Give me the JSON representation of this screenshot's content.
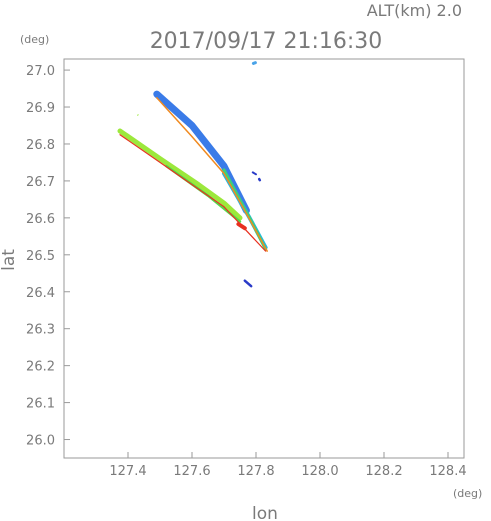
{
  "chart_data": {
    "type": "scatter",
    "header": "ALT(km)  2.0",
    "title": "2017/09/17 21:16:30",
    "xlabel": "lon",
    "ylabel": "lat",
    "xunit": "(deg)",
    "yunit": "(deg)",
    "xlim": [
      127.2,
      128.45
    ],
    "ylim": [
      25.95,
      27.03
    ],
    "xticks": [
      127.4,
      127.6,
      127.8,
      128.0,
      128.2,
      128.4
    ],
    "yticks": [
      26.0,
      26.1,
      26.2,
      26.3,
      26.4,
      26.5,
      26.6,
      26.7,
      26.8,
      26.9,
      27.0
    ],
    "xtick_labels": [
      "127.4",
      "127.6",
      "127.8",
      "128.0",
      "128.2",
      "128.4"
    ],
    "ytick_labels": [
      "26.0",
      "26.1",
      "26.2",
      "26.3",
      "26.4",
      "26.5",
      "26.6",
      "26.7",
      "26.8",
      "26.9",
      "27.0"
    ],
    "grid": false,
    "series": [
      {
        "color": "#3a7be8",
        "width": 7,
        "points": [
          [
            127.49,
            26.935
          ],
          [
            127.6,
            26.85
          ],
          [
            127.7,
            26.74
          ],
          [
            127.77,
            26.62
          ]
        ]
      },
      {
        "color": "#24b8e0",
        "width": 4,
        "points": [
          [
            127.7,
            26.72
          ],
          [
            127.78,
            26.6
          ],
          [
            127.83,
            26.52
          ]
        ]
      },
      {
        "color": "#3fcf7a",
        "width": 3,
        "points": [
          [
            127.7,
            26.73
          ],
          [
            127.78,
            26.6
          ],
          [
            127.83,
            26.515
          ]
        ]
      },
      {
        "color": "#f08a20",
        "width": 1.5,
        "points": [
          [
            127.49,
            26.925
          ],
          [
            127.6,
            26.82
          ],
          [
            127.7,
            26.72
          ],
          [
            127.835,
            26.51
          ]
        ]
      },
      {
        "color": "#9ce83c",
        "width": 5,
        "points": [
          [
            127.375,
            26.835
          ],
          [
            127.5,
            26.76
          ],
          [
            127.62,
            26.69
          ],
          [
            127.7,
            26.64
          ],
          [
            127.75,
            26.6
          ]
        ]
      },
      {
        "color": "#52d84a",
        "width": 2.5,
        "points": [
          [
            127.52,
            26.74
          ],
          [
            127.65,
            26.66
          ],
          [
            127.75,
            26.59
          ]
        ]
      },
      {
        "color": "#e83020",
        "width": 1.2,
        "points": [
          [
            127.375,
            26.825
          ],
          [
            127.5,
            26.75
          ],
          [
            127.6,
            26.69
          ],
          [
            127.7,
            26.63
          ],
          [
            127.83,
            26.51
          ]
        ]
      },
      {
        "color": "#e83020",
        "width": 4,
        "points": [
          [
            127.745,
            26.583
          ],
          [
            127.765,
            26.572
          ]
        ]
      },
      {
        "color": "#2a3bc8",
        "width": 2.5,
        "points": [
          [
            127.765,
            26.43
          ],
          [
            127.785,
            26.415
          ]
        ]
      },
      {
        "color": "#2a3bc8",
        "width": 2,
        "points": [
          [
            127.79,
            26.723
          ],
          [
            127.8,
            26.718
          ]
        ]
      },
      {
        "color": "#2a3bc8",
        "width": 2.5,
        "points": [
          [
            127.81,
            26.705
          ],
          [
            127.812,
            26.702
          ]
        ]
      },
      {
        "color": "#4aa3e8",
        "width": 3,
        "points": [
          [
            127.792,
            27.018
          ],
          [
            127.798,
            27.02
          ]
        ]
      },
      {
        "color": "#9ce83c",
        "width": 1,
        "points": [
          [
            127.43,
            26.878
          ],
          [
            127.432,
            26.879
          ]
        ]
      }
    ]
  }
}
